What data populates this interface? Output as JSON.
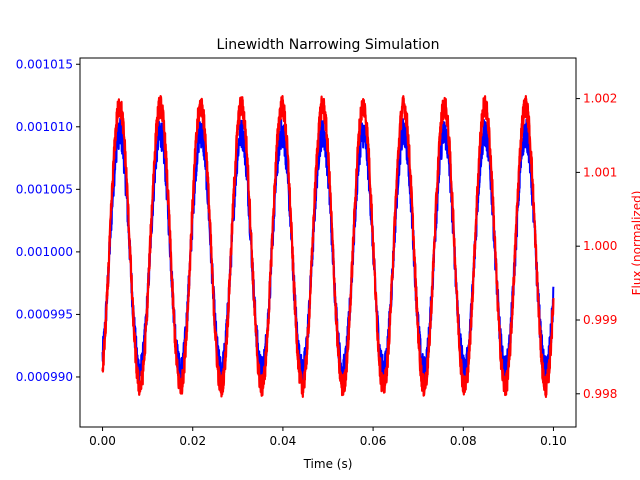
{
  "chart_data": {
    "type": "line",
    "title": "Linewidth Narrowing Simulation",
    "xlabel": "Time (s)",
    "ylabel_left": "",
    "ylabel_right": "Flux (normalized)",
    "xlim": [
      -0.005,
      0.105
    ],
    "ylim_left": [
      0.000986,
      0.0010155
    ],
    "ylim_right": [
      0.99755,
      1.00255
    ],
    "x_ticks": [
      0.0,
      0.02,
      0.04,
      0.06,
      0.08,
      0.1
    ],
    "x_tick_labels": [
      "0.00",
      "0.02",
      "0.04",
      "0.06",
      "0.08",
      "0.10"
    ],
    "y_left_ticks": [
      0.00099,
      0.000995,
      0.001,
      0.001005,
      0.00101,
      0.001015
    ],
    "y_left_tick_labels": [
      "0.000990",
      "0.000995",
      "0.001000",
      "0.001005",
      "0.001010",
      "0.001015"
    ],
    "y_right_ticks": [
      0.998,
      0.999,
      1.0,
      1.001,
      1.002
    ],
    "y_right_tick_labels": [
      "0.998",
      "0.999",
      "1.000",
      "1.001",
      "1.002"
    ],
    "grid": false,
    "series": [
      {
        "axis": "left",
        "color": "#0000ff",
        "x_range": [
          0.0,
          0.1
        ],
        "oscillation_period": 0.009,
        "mean": 0.001,
        "amplitude": 9.5e-06,
        "noise_amplitude": 1.2e-06,
        "max": 0.001014,
        "min": 0.000987
      },
      {
        "axis": "right",
        "color": "#ff0000",
        "x_range": [
          0.0,
          0.1
        ],
        "oscillation_period": 0.009,
        "mean": 1.0,
        "amplitude": 0.0019,
        "noise_amplitude": 0.00015,
        "max": 1.0022,
        "min": 0.9978
      }
    ],
    "colors": {
      "left_axis": "#0000ff",
      "right_axis": "#ff0000",
      "frame": "#000000"
    }
  }
}
